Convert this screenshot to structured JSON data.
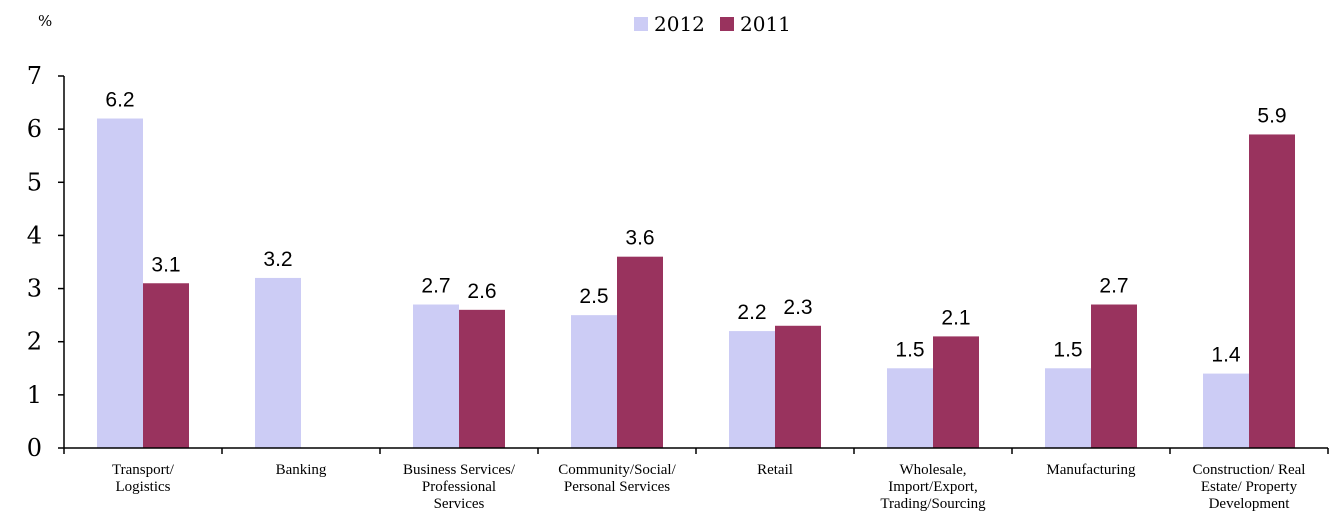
{
  "chart_data": {
    "type": "bar",
    "unit_label": "%",
    "categories": [
      [
        "Transport/",
        "Logistics"
      ],
      [
        "Banking"
      ],
      [
        "Business Services/",
        "Professional",
        "Services"
      ],
      [
        "Community/Social/",
        "Personal Services"
      ],
      [
        "Retail"
      ],
      [
        "Wholesale,",
        "Import/Export,",
        "Trading/Sourcing"
      ],
      [
        "Manufacturing"
      ],
      [
        "Construction/ Real",
        "Estate/ Property",
        "Development"
      ]
    ],
    "series": [
      {
        "name": "2012",
        "color": "#ccccf5",
        "values": [
          6.2,
          3.2,
          2.7,
          2.5,
          2.2,
          1.5,
          1.5,
          1.4
        ]
      },
      {
        "name": "2011",
        "color": "#99335e",
        "values": [
          3.1,
          null,
          2.6,
          3.6,
          2.3,
          2.1,
          2.7,
          5.9
        ]
      }
    ],
    "ylim": [
      0,
      7
    ],
    "yticks": [
      0,
      1,
      2,
      3,
      4,
      5,
      6,
      7
    ],
    "legend_position": "top-center",
    "grid": false
  }
}
